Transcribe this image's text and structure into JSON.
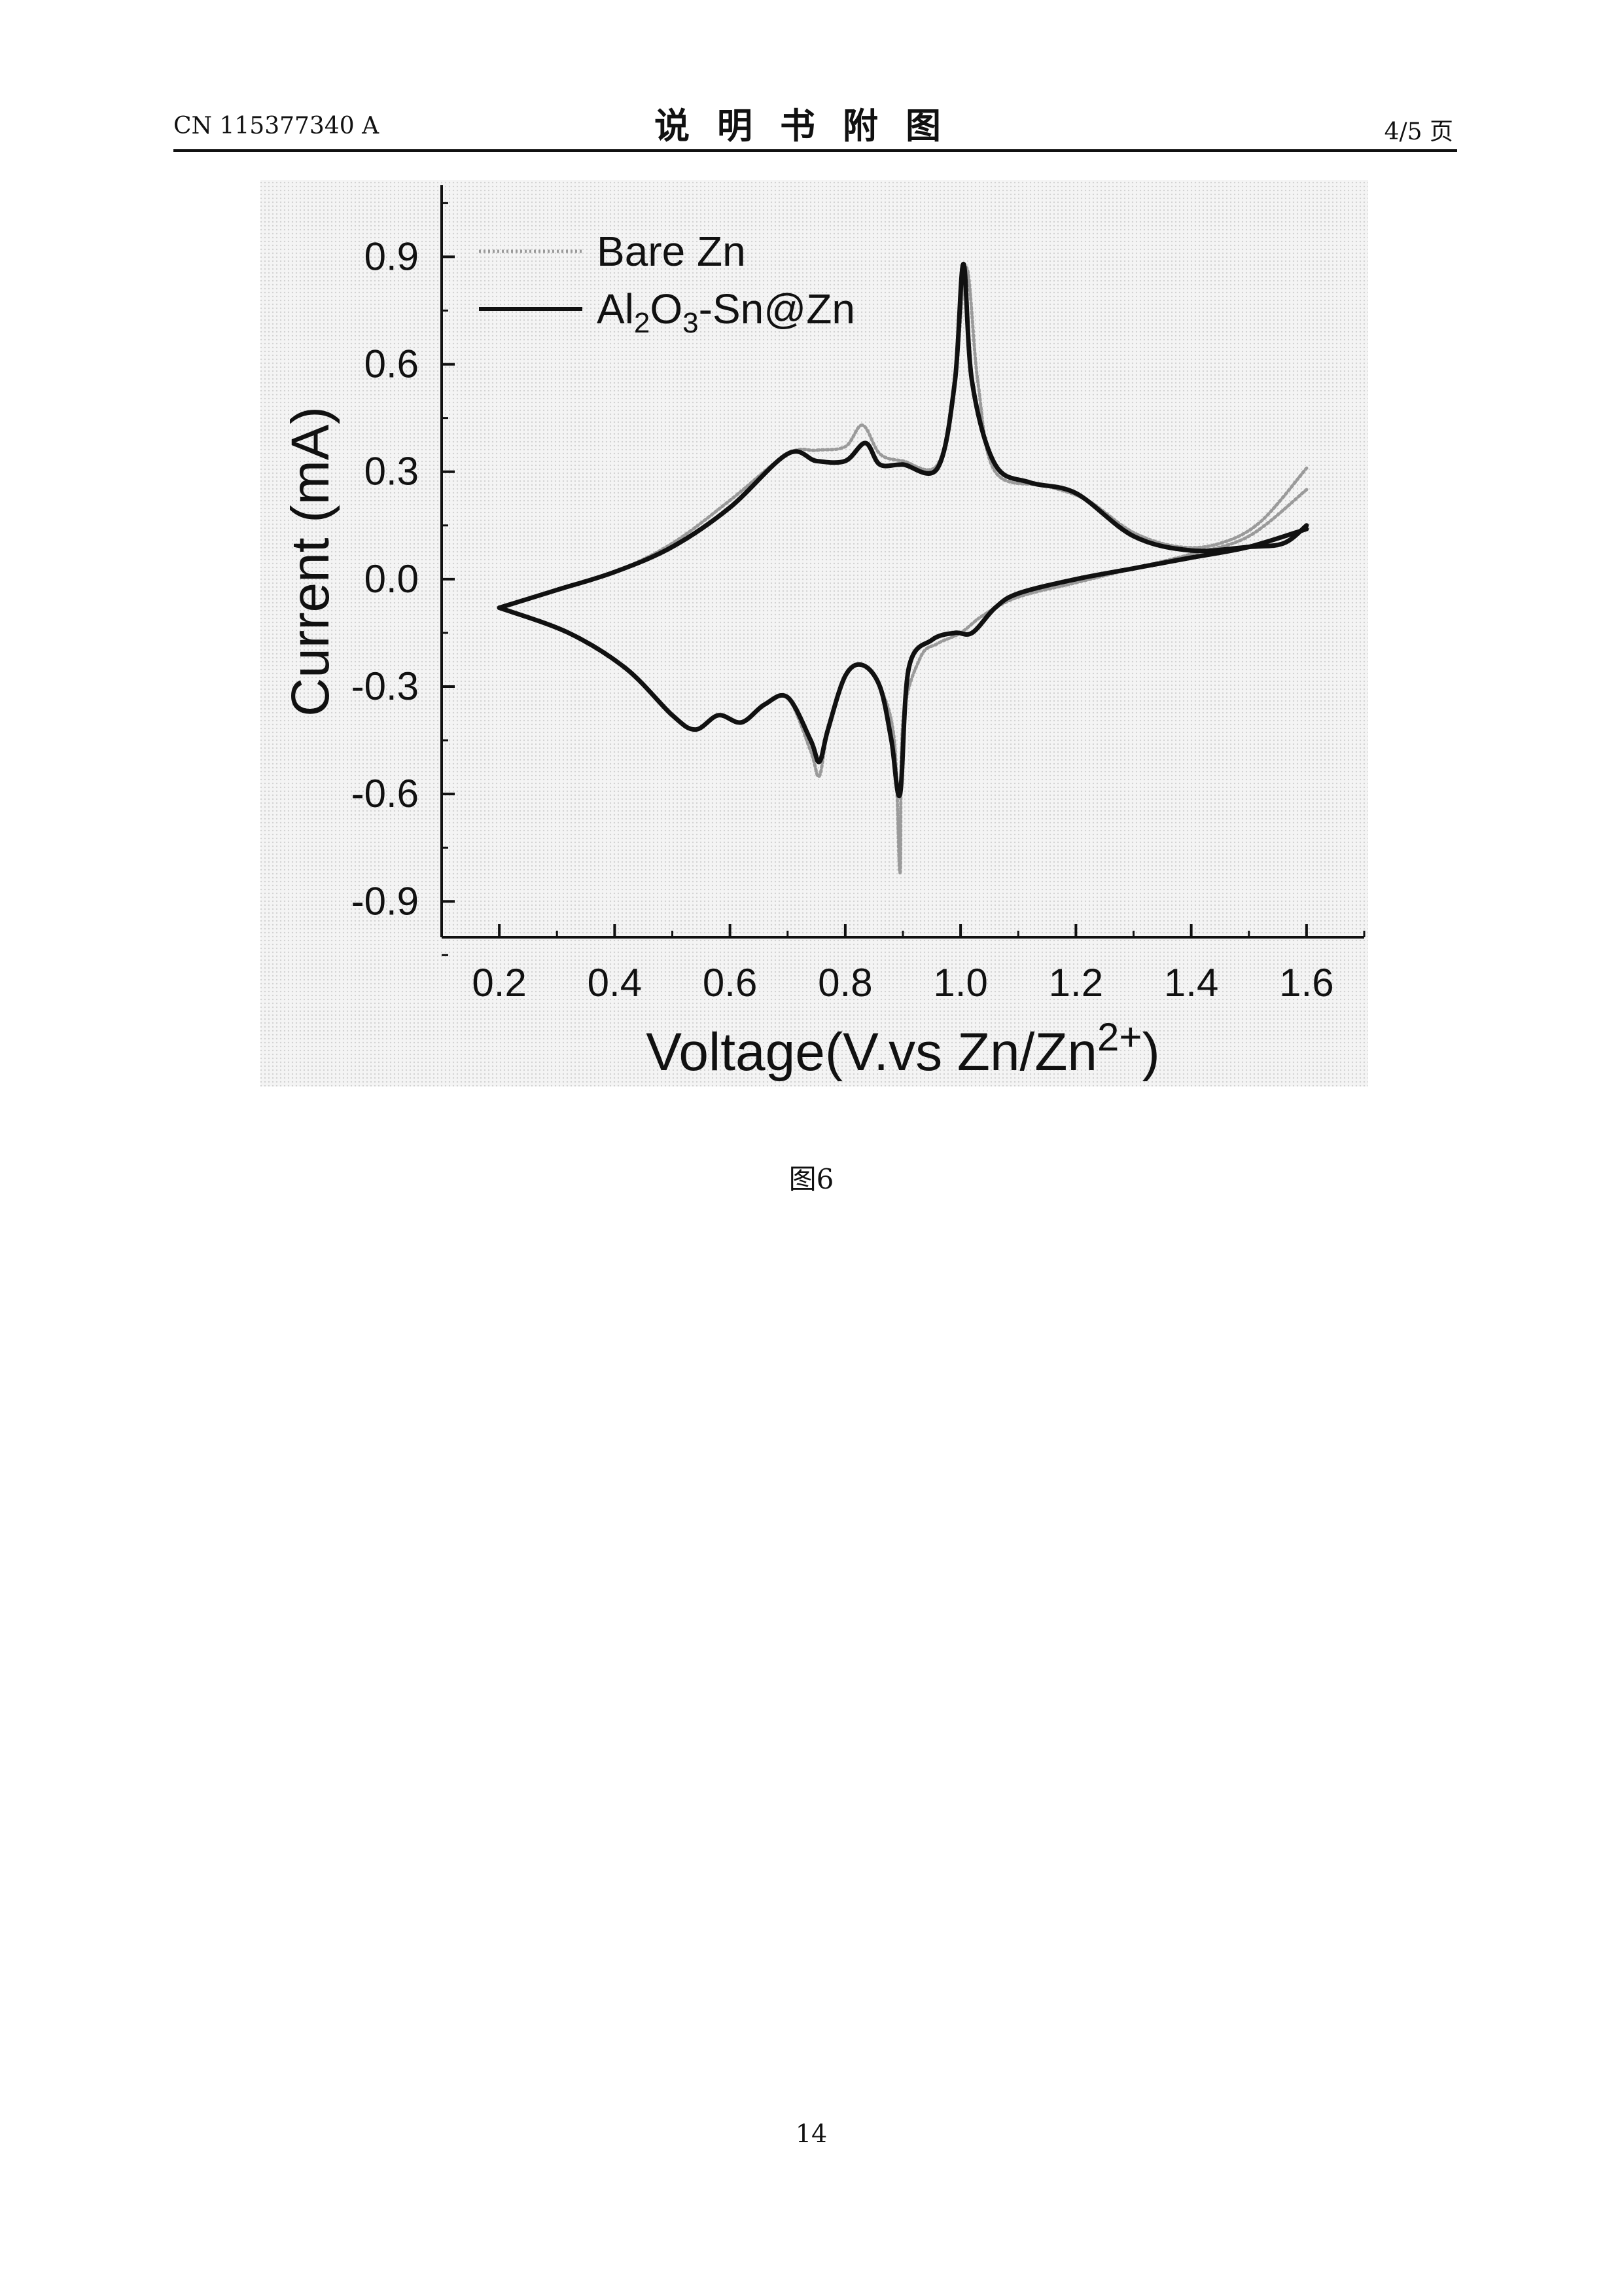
{
  "header": {
    "left": "CN 115377340 A",
    "title": "说明书附图",
    "right": "4/5 页"
  },
  "figure": {
    "caption": "图6"
  },
  "footer": {
    "page_number": "14"
  },
  "chart_data": {
    "type": "line",
    "xlabel": "Voltage(V.vs Zn/Zn",
    "xlabel_sup": "2+",
    "xlabel_close": ")",
    "ylabel": "Current (mA)",
    "xlim": [
      0.1,
      1.7
    ],
    "ylim": [
      -1.0,
      1.1
    ],
    "xticks": [
      "0.2",
      "0.4",
      "0.6",
      "0.8",
      "1.0",
      "1.2",
      "1.4",
      "1.6"
    ],
    "xtick_values": [
      0.2,
      0.4,
      0.6,
      0.8,
      1.0,
      1.2,
      1.4,
      1.6
    ],
    "yticks": [
      "0.9",
      "0.6",
      "0.3",
      "0.0",
      "-0.3",
      "-0.6",
      "-0.9"
    ],
    "ytick_values": [
      0.9,
      0.6,
      0.3,
      0.0,
      -0.3,
      -0.6,
      -0.9
    ],
    "grid": false,
    "legend_position": "top-left",
    "series": [
      {
        "name": "Bare Zn",
        "legend_parts": [
          "Bare Zn"
        ],
        "style": "dotted-gray",
        "color": "#9a9a9a",
        "anodic": [
          [
            0.2,
            -0.08
          ],
          [
            0.3,
            -0.03
          ],
          [
            0.4,
            0.02
          ],
          [
            0.5,
            0.1
          ],
          [
            0.6,
            0.22
          ],
          [
            0.7,
            0.35
          ],
          [
            0.75,
            0.36
          ],
          [
            0.8,
            0.37
          ],
          [
            0.83,
            0.43
          ],
          [
            0.86,
            0.35
          ],
          [
            0.9,
            0.33
          ],
          [
            0.96,
            0.32
          ],
          [
            0.99,
            0.55
          ],
          [
            1.01,
            0.87
          ],
          [
            1.03,
            0.55
          ],
          [
            1.06,
            0.3
          ],
          [
            1.15,
            0.26
          ],
          [
            1.22,
            0.22
          ],
          [
            1.3,
            0.13
          ],
          [
            1.38,
            0.09
          ],
          [
            1.45,
            0.1
          ],
          [
            1.52,
            0.16
          ],
          [
            1.6,
            0.31
          ]
        ],
        "cathodic": [
          [
            1.6,
            0.25
          ],
          [
            1.5,
            0.12
          ],
          [
            1.4,
            0.07
          ],
          [
            1.3,
            0.03
          ],
          [
            1.2,
            -0.01
          ],
          [
            1.1,
            -0.05
          ],
          [
            1.04,
            -0.1
          ],
          [
            1.0,
            -0.15
          ],
          [
            0.96,
            -0.18
          ],
          [
            0.93,
            -0.22
          ],
          [
            0.9,
            -0.4
          ],
          [
            0.895,
            -0.82
          ],
          [
            0.885,
            -0.45
          ],
          [
            0.86,
            -0.3
          ],
          [
            0.83,
            -0.24
          ],
          [
            0.8,
            -0.27
          ],
          [
            0.77,
            -0.42
          ],
          [
            0.755,
            -0.55
          ],
          [
            0.74,
            -0.48
          ],
          [
            0.7,
            -0.33
          ],
          [
            0.66,
            -0.35
          ],
          [
            0.62,
            -0.4
          ],
          [
            0.58,
            -0.38
          ],
          [
            0.54,
            -0.42
          ],
          [
            0.5,
            -0.38
          ],
          [
            0.42,
            -0.25
          ],
          [
            0.32,
            -0.15
          ],
          [
            0.2,
            -0.08
          ]
        ]
      },
      {
        "name": "Al2O3-Sn@Zn",
        "legend_parts": [
          "Al",
          "2",
          "O",
          "3",
          "-Sn@Zn"
        ],
        "style": "solid-black",
        "color": "#111111",
        "anodic": [
          [
            0.2,
            -0.08
          ],
          [
            0.3,
            -0.03
          ],
          [
            0.4,
            0.02
          ],
          [
            0.5,
            0.09
          ],
          [
            0.6,
            0.2
          ],
          [
            0.7,
            0.35
          ],
          [
            0.75,
            0.33
          ],
          [
            0.8,
            0.33
          ],
          [
            0.835,
            0.38
          ],
          [
            0.86,
            0.32
          ],
          [
            0.9,
            0.32
          ],
          [
            0.96,
            0.31
          ],
          [
            0.99,
            0.55
          ],
          [
            1.005,
            0.88
          ],
          [
            1.02,
            0.55
          ],
          [
            1.06,
            0.32
          ],
          [
            1.12,
            0.27
          ],
          [
            1.2,
            0.24
          ],
          [
            1.3,
            0.12
          ],
          [
            1.4,
            0.08
          ],
          [
            1.5,
            0.09
          ],
          [
            1.56,
            0.1
          ],
          [
            1.6,
            0.15
          ]
        ],
        "cathodic": [
          [
            1.6,
            0.14
          ],
          [
            1.5,
            0.09
          ],
          [
            1.4,
            0.06
          ],
          [
            1.3,
            0.03
          ],
          [
            1.2,
            0.0
          ],
          [
            1.1,
            -0.04
          ],
          [
            1.06,
            -0.08
          ],
          [
            1.02,
            -0.15
          ],
          [
            0.99,
            -0.15
          ],
          [
            0.95,
            -0.17
          ],
          [
            0.91,
            -0.25
          ],
          [
            0.895,
            -0.6
          ],
          [
            0.88,
            -0.45
          ],
          [
            0.86,
            -0.3
          ],
          [
            0.83,
            -0.24
          ],
          [
            0.8,
            -0.27
          ],
          [
            0.77,
            -0.42
          ],
          [
            0.755,
            -0.51
          ],
          [
            0.74,
            -0.45
          ],
          [
            0.7,
            -0.33
          ],
          [
            0.66,
            -0.35
          ],
          [
            0.62,
            -0.4
          ],
          [
            0.58,
            -0.38
          ],
          [
            0.54,
            -0.42
          ],
          [
            0.5,
            -0.38
          ],
          [
            0.42,
            -0.25
          ],
          [
            0.32,
            -0.15
          ],
          [
            0.2,
            -0.08
          ]
        ]
      }
    ]
  }
}
